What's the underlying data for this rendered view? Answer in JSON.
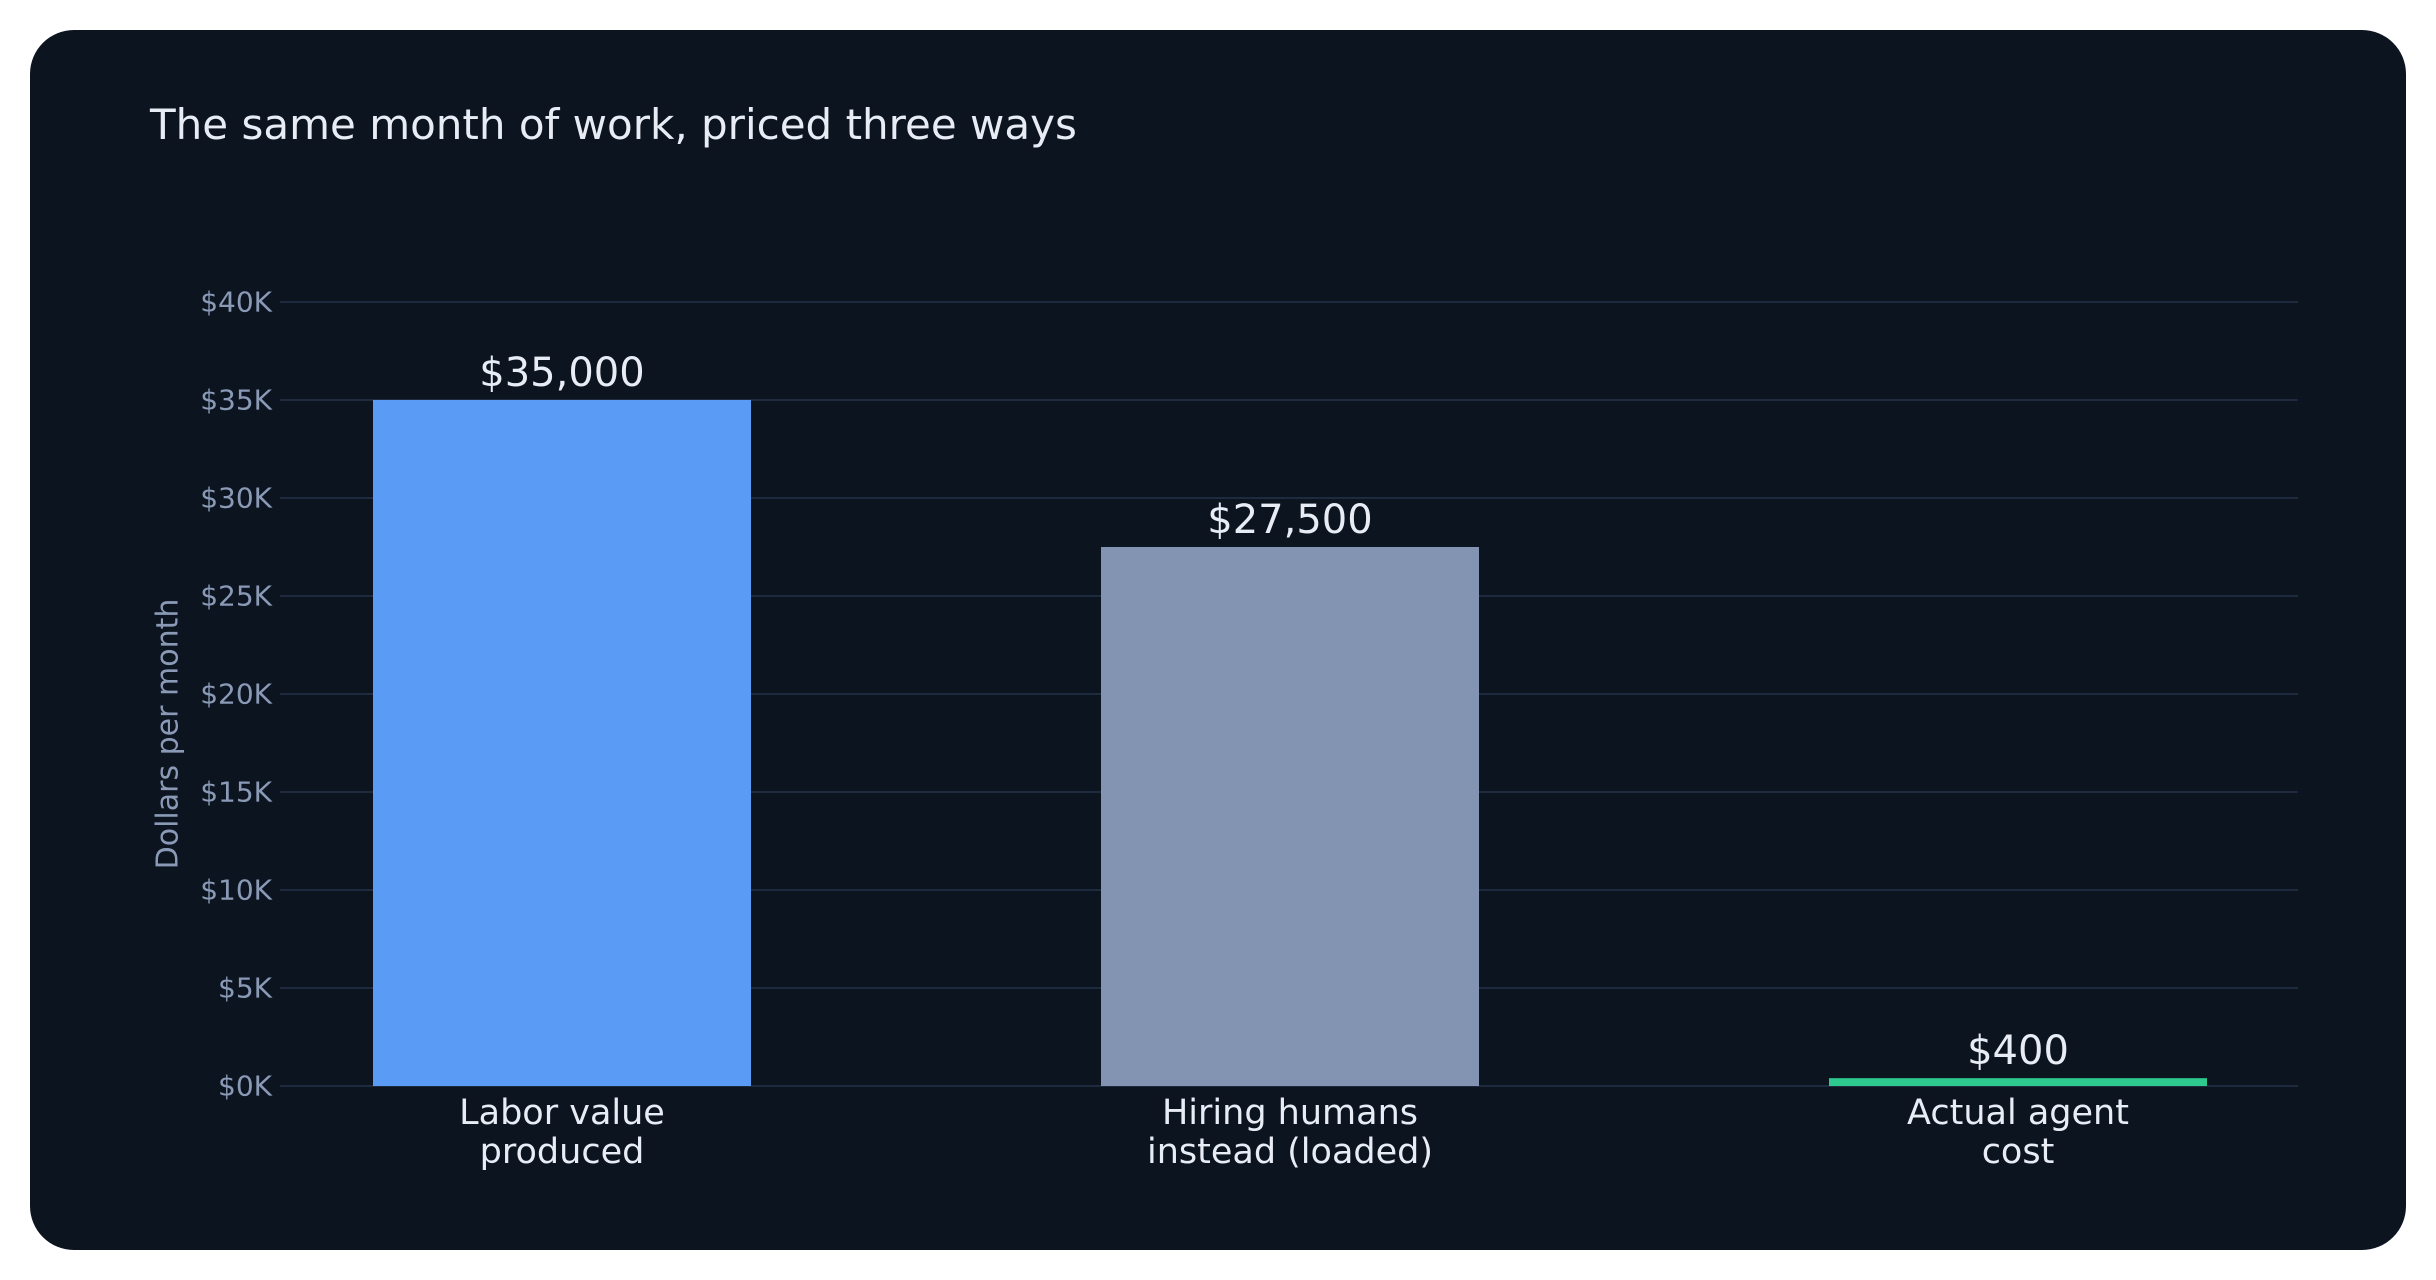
{
  "chart_data": {
    "type": "bar",
    "title": "The same month of work, priced three ways",
    "xlabel": "",
    "ylabel": "Dollars per month",
    "ylim": [
      0,
      40000
    ],
    "yticks": [
      {
        "value": 0,
        "label": "$0K"
      },
      {
        "value": 5000,
        "label": "$5K"
      },
      {
        "value": 10000,
        "label": "$10K"
      },
      {
        "value": 15000,
        "label": "$15K"
      },
      {
        "value": 20000,
        "label": "$20K"
      },
      {
        "value": 25000,
        "label": "$25K"
      },
      {
        "value": 30000,
        "label": "$30K"
      },
      {
        "value": 35000,
        "label": "$35K"
      },
      {
        "value": 40000,
        "label": "$40K"
      }
    ],
    "categories": [
      [
        "Labor value",
        "produced"
      ],
      [
        "Hiring humans",
        "instead (loaded)"
      ],
      [
        "Actual agent",
        "cost"
      ]
    ],
    "values": [
      35000,
      27500,
      400
    ],
    "value_labels": [
      "$35,000",
      "$27,500",
      "$400"
    ],
    "colors": [
      "#5a9bf6",
      "#8294b1",
      "#2ec98e"
    ],
    "grid": true,
    "legend": "none"
  },
  "theme": {
    "background": "#0c1420",
    "grid_color": "#1e2a3d",
    "axis_text_color": "#8a9ab6",
    "label_text_color": "#e8edf5"
  }
}
